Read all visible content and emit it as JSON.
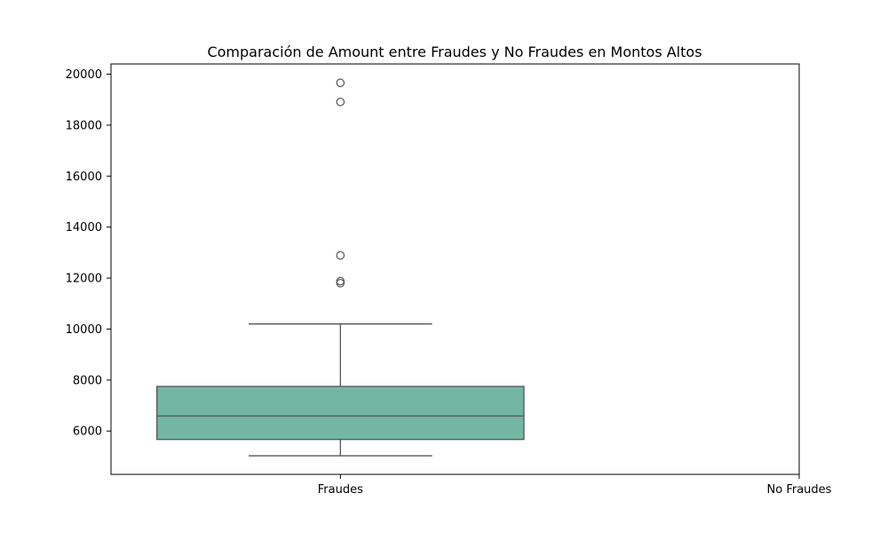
{
  "chart_data": {
    "type": "box",
    "title": "Comparación de Amount entre Fraudes y No Fraudes en Montos Altos",
    "xlabel": "",
    "ylabel": "",
    "categories": [
      "Fraudes",
      "No Fraudes"
    ],
    "ylim": [
      4300,
      20400
    ],
    "yticks": [
      6000,
      8000,
      10000,
      12000,
      14000,
      16000,
      18000,
      20000
    ],
    "box_color": "#73b6a2",
    "boxes": [
      {
        "category": "Fraudes",
        "whisker_low": 5030,
        "q1": 5670,
        "median": 6590,
        "q3": 7750,
        "whisker_high": 10200,
        "outliers": [
          11800,
          11880,
          12890,
          18910,
          19660
        ]
      },
      {
        "category": "No Fraudes",
        "empty": true
      }
    ]
  }
}
